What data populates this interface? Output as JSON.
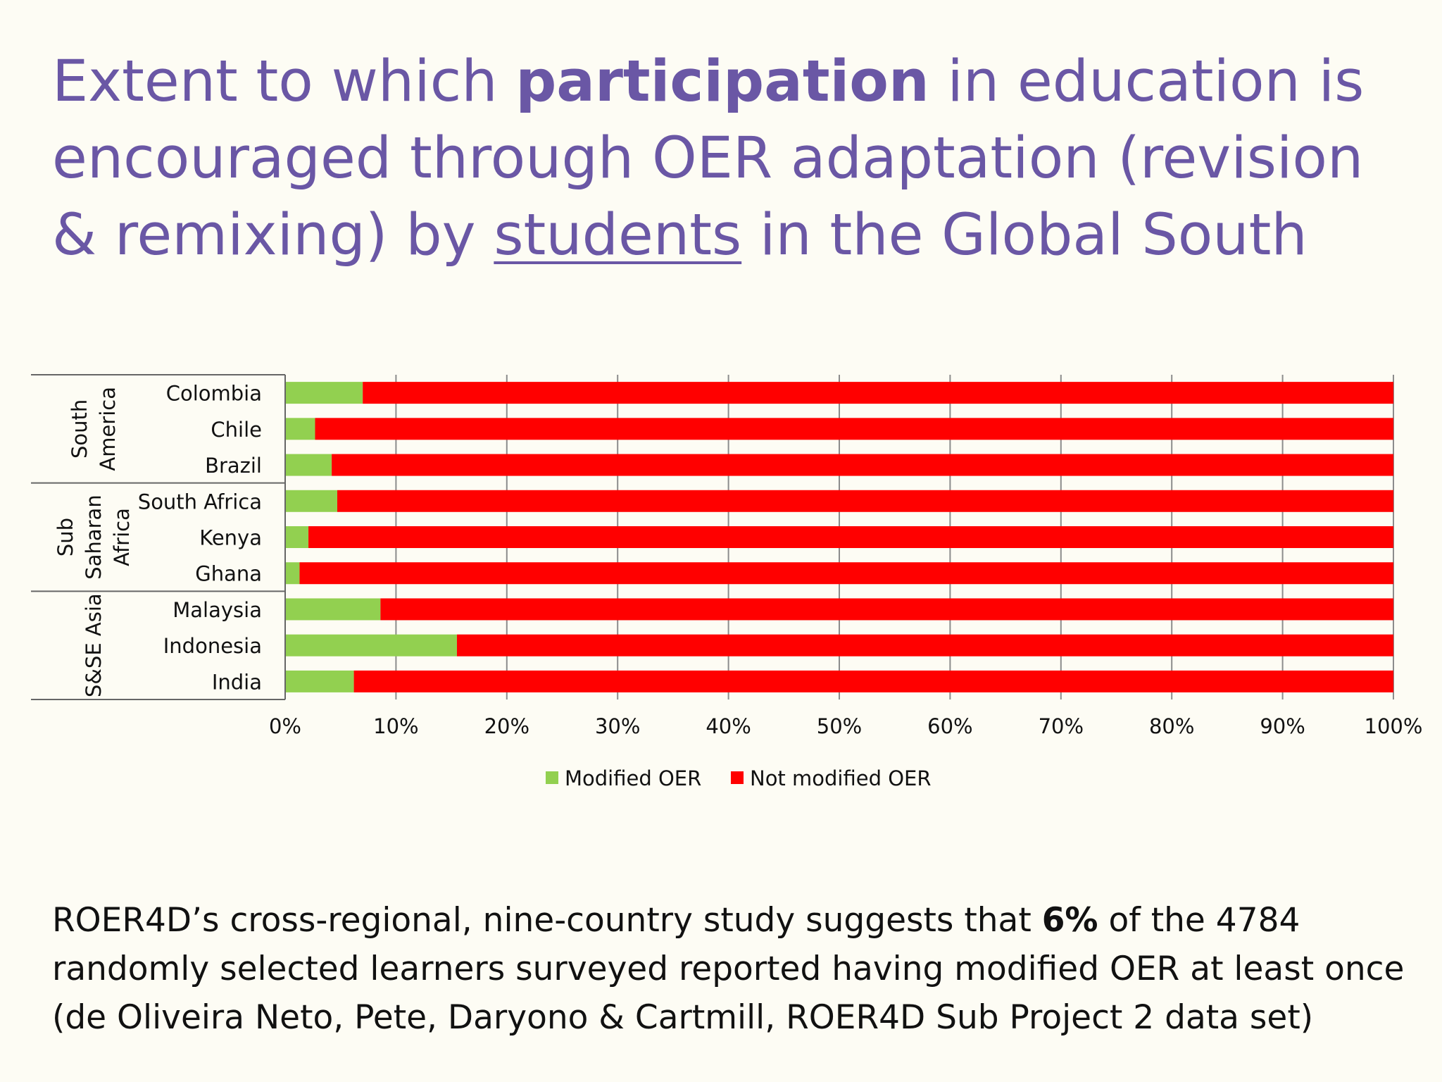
{
  "title": {
    "part1": "Extent to which ",
    "bold": "participation",
    "part2": " in education is encouraged through OER adaptation (revision & remixing) by ",
    "underlined": "students",
    "part3": " in the Global South"
  },
  "footnote": {
    "part1": "ROER4D’s cross-regional, nine-country study suggests that ",
    "bold": "6%",
    "part2": " of the 4784 randomly selected learners surveyed reported having modified OER at least once (de Oliveira Neto, Pete, Daryono & Cartmill, ROER4D Sub Project 2 data set)"
  },
  "chart_data": {
    "type": "bar",
    "orientation": "horizontal",
    "stacked": true,
    "normalized_to_100_percent": true,
    "categories": [
      "Colombia",
      "Chile",
      "Brazil",
      "South Africa",
      "Kenya",
      "Ghana",
      "Malaysia",
      "Indonesia",
      "India"
    ],
    "groups": [
      {
        "lines": [
          "South",
          "America"
        ],
        "categories": [
          "Colombia",
          "Chile",
          "Brazil"
        ]
      },
      {
        "lines": [
          "Sub",
          "Saharan",
          "Africa"
        ],
        "categories": [
          "South Africa",
          "Kenya",
          "Ghana"
        ]
      },
      {
        "lines": [
          "S&SE Asia"
        ],
        "categories": [
          "Malaysia",
          "Indonesia",
          "India"
        ]
      }
    ],
    "series": [
      {
        "name": "Modified OER",
        "color": "#92d050",
        "values": [
          7.0,
          2.7,
          4.2,
          4.7,
          2.1,
          1.3,
          8.6,
          15.5,
          6.2
        ]
      },
      {
        "name": "Not modified OER",
        "color": "#ff0000",
        "values": [
          93.0,
          97.3,
          95.8,
          95.3,
          97.9,
          98.7,
          91.4,
          84.5,
          93.8
        ]
      }
    ],
    "xlim": [
      0,
      100
    ],
    "xticks": [
      "0%",
      "10%",
      "20%",
      "30%",
      "40%",
      "50%",
      "60%",
      "70%",
      "80%",
      "90%",
      "100%"
    ],
    "grid": true,
    "legend_position": "bottom"
  }
}
